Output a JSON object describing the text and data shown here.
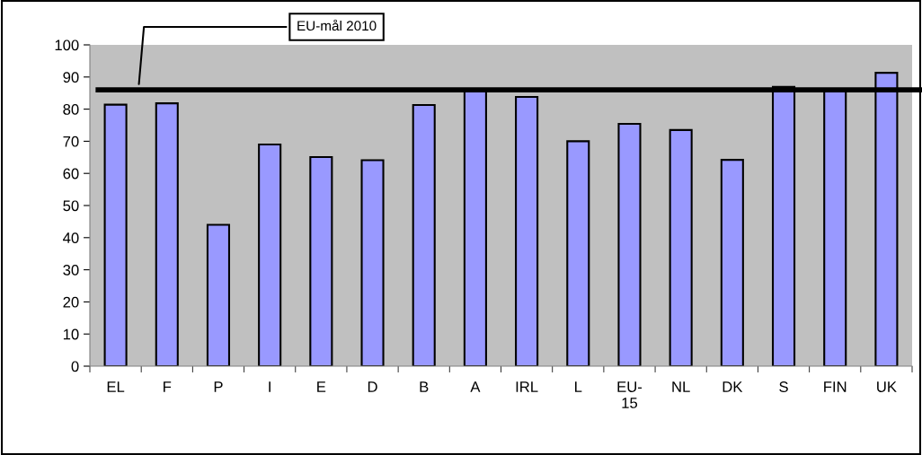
{
  "chart_data": {
    "type": "bar",
    "categories": [
      "EL",
      "F",
      "P",
      "I",
      "E",
      "D",
      "B",
      "A",
      "IRL",
      "L",
      "EU-\n15",
      "NL",
      "DK",
      "S",
      "FIN",
      "UK"
    ],
    "values": [
      81.4,
      81.8,
      44,
      69,
      65.1,
      64.1,
      81.3,
      85.5,
      83.8,
      70,
      75.4,
      73.5,
      64.2,
      86.9,
      85.5,
      91.3
    ],
    "color": "#9999ff",
    "ylim": [
      0,
      100
    ],
    "yticks": [
      0,
      10,
      20,
      30,
      40,
      50,
      60,
      70,
      80,
      90,
      100
    ],
    "grid": false,
    "legend": false,
    "ref_lines": [
      {
        "axis": "y",
        "value": 86,
        "label": "EU-mål 2010",
        "color": "#000000",
        "line_style": "solid"
      }
    ]
  }
}
